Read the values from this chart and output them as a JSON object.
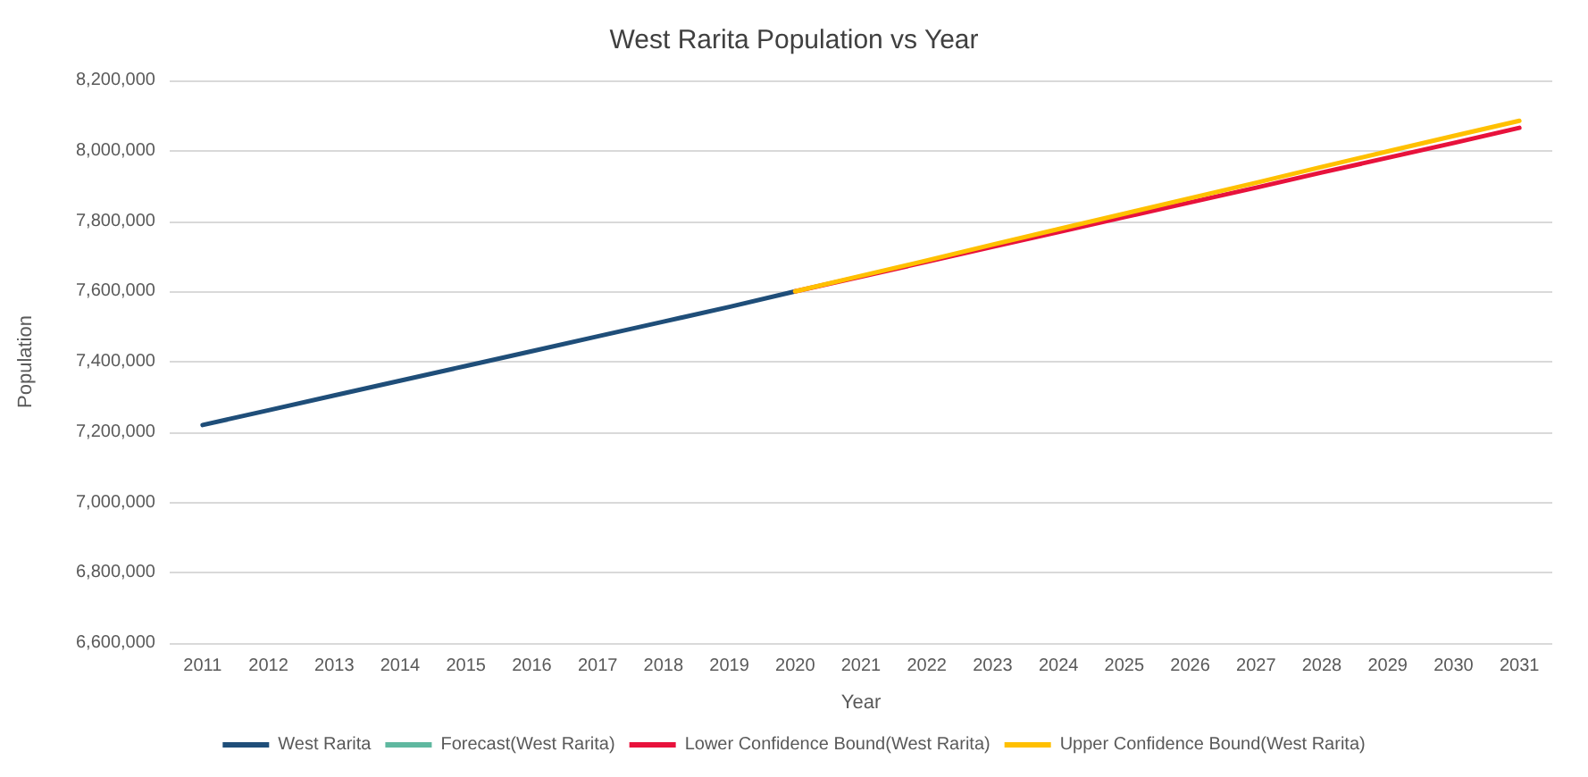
{
  "chart_data": {
    "type": "line",
    "title": "West Rarita Population vs Year",
    "xlabel": "Year",
    "ylabel": "Population",
    "categories": [
      "2011",
      "2012",
      "2013",
      "2014",
      "2015",
      "2016",
      "2017",
      "2018",
      "2019",
      "2020",
      "2021",
      "2022",
      "2023",
      "2024",
      "2025",
      "2026",
      "2027",
      "2028",
      "2029",
      "2030",
      "2031"
    ],
    "series": [
      {
        "name": "West Rarita",
        "color": "#1f4e79",
        "values": [
          7220000,
          7262000,
          7304000,
          7346000,
          7388000,
          7430000,
          7472000,
          7514000,
          7556000,
          7600000,
          null,
          null,
          null,
          null,
          null,
          null,
          null,
          null,
          null,
          null,
          null
        ]
      },
      {
        "name": "Forecast(West Rarita)",
        "color": "#5fb8a0",
        "values": [
          null,
          null,
          null,
          null,
          null,
          null,
          null,
          null,
          null,
          null,
          null,
          null,
          null,
          null,
          null,
          null,
          null,
          null,
          null,
          null,
          null
        ]
      },
      {
        "name": "Lower Confidence Bound(West Rarita)",
        "color": "#e8123c",
        "values": [
          null,
          null,
          null,
          null,
          null,
          null,
          null,
          null,
          null,
          7600000,
          7642000,
          7684000,
          7727000,
          7769000,
          7811000,
          7853000,
          7895000,
          7938000,
          7980000,
          8022000,
          8065000
        ]
      },
      {
        "name": "Upper Confidence Bound(West Rarita)",
        "color": "#ffc000",
        "values": [
          null,
          null,
          null,
          null,
          null,
          null,
          null,
          null,
          null,
          7600000,
          7644000,
          7688000,
          7733000,
          7777000,
          7821000,
          7865000,
          7909000,
          7954000,
          7998000,
          8042000,
          8085000
        ]
      }
    ],
    "ylim": [
      6600000,
      8200000
    ],
    "yticks": [
      {
        "value": 6600000,
        "label": "6,600,000"
      },
      {
        "value": 6800000,
        "label": "6,800,000"
      },
      {
        "value": 7000000,
        "label": "7,000,000"
      },
      {
        "value": 7200000,
        "label": "7,200,000"
      },
      {
        "value": 7400000,
        "label": "7,400,000"
      },
      {
        "value": 7600000,
        "label": "7,600,000"
      },
      {
        "value": 7800000,
        "label": "7,800,000"
      },
      {
        "value": 8000000,
        "label": "8,000,000"
      },
      {
        "value": 8200000,
        "label": "8,200,000"
      }
    ],
    "grid": "y",
    "legend": "bottom",
    "marker": "none",
    "line_style": "solid"
  }
}
